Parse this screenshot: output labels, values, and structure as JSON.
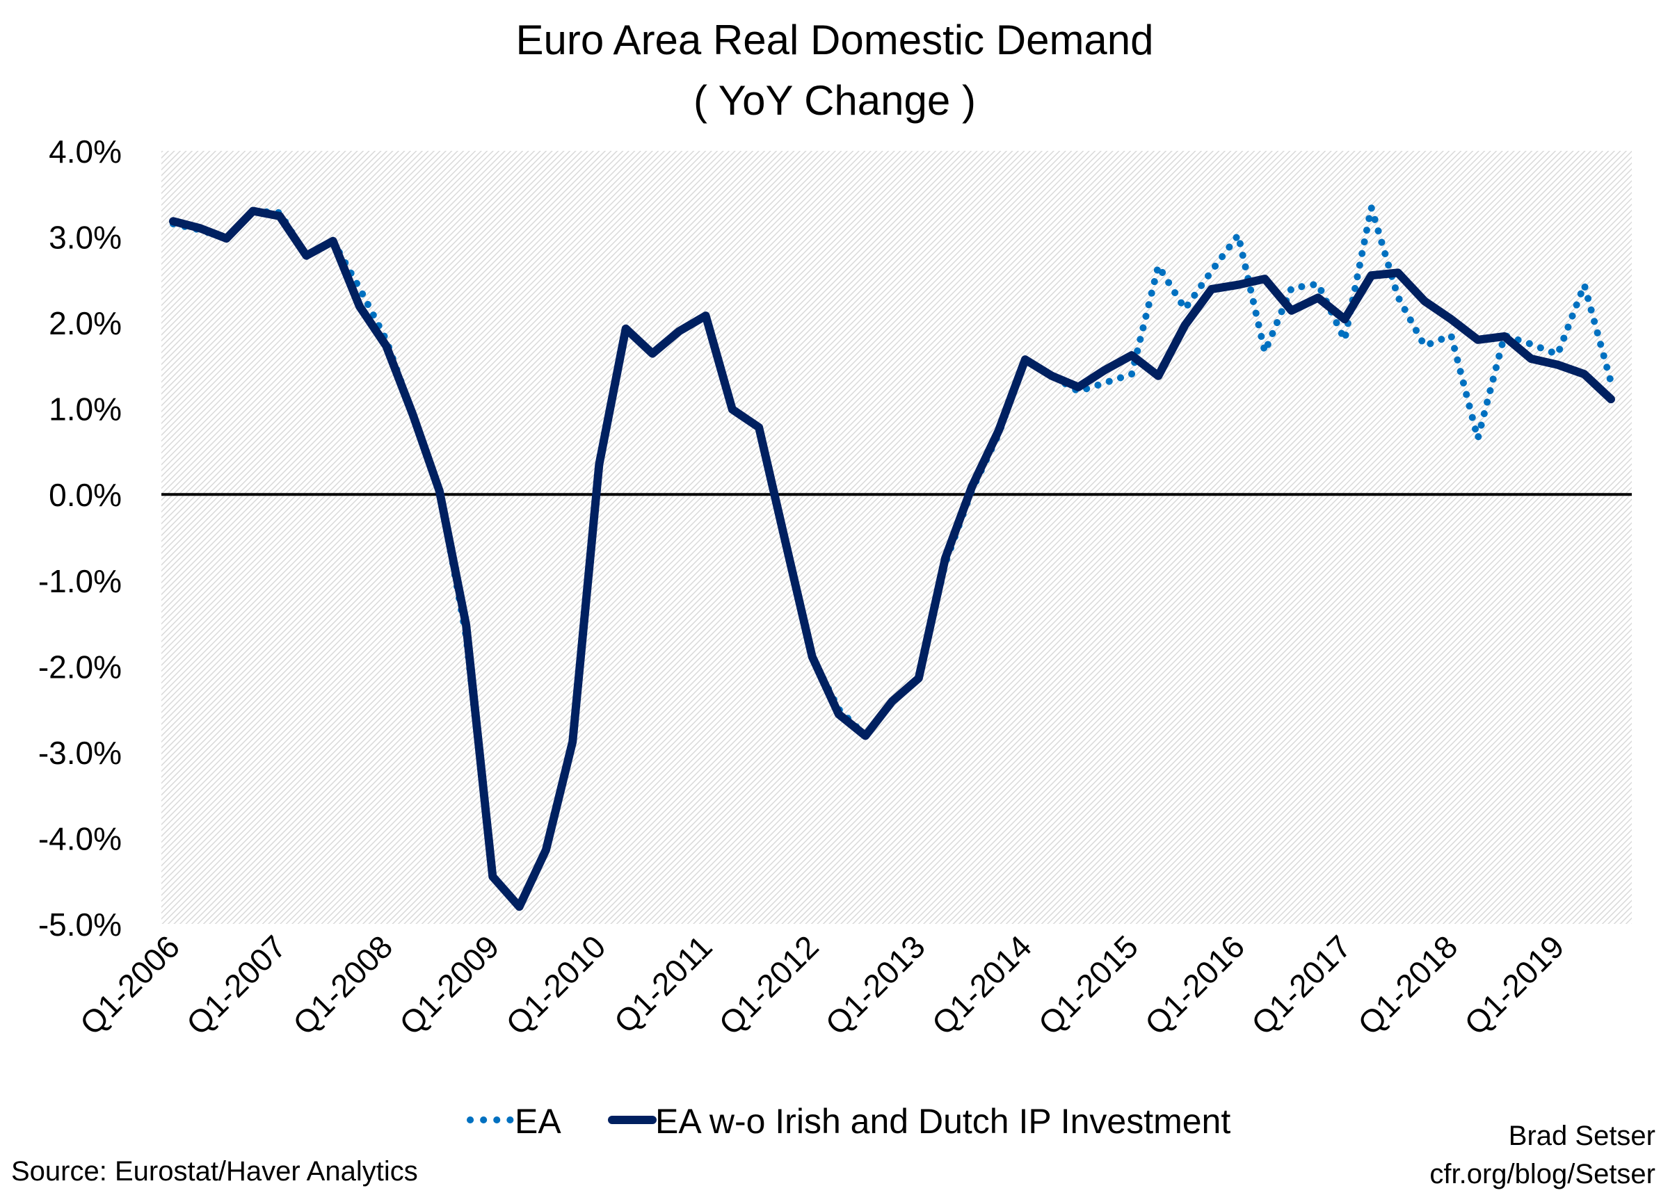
{
  "chart_data": {
    "type": "line",
    "title": "Euro Area Real Domestic Demand",
    "subtitle": "( YoY Change )",
    "xlabel": "",
    "ylabel": "",
    "ylim": [
      -5.0,
      4.0
    ],
    "y_ticks": [
      "4.0%",
      "3.0%",
      "2.0%",
      "1.0%",
      "0.0%",
      "-1.0%",
      "-2.0%",
      "-3.0%",
      "-4.0%",
      "-5.0%"
    ],
    "x_tick_labels": [
      "Q1-2006",
      "Q1-2007",
      "Q1-2008",
      "Q1-2009",
      "Q1-2010",
      "Q1-2011",
      "Q1-2012",
      "Q1-2013",
      "Q1-2014",
      "Q1-2015",
      "Q1-2016",
      "Q1-2017",
      "Q1-2018",
      "Q1-2019"
    ],
    "x_start": "Q1-2006",
    "x_end": "Q3-2019",
    "grid": false,
    "background": "hatched light gray",
    "legend_position": "bottom",
    "series": [
      {
        "name": "EA",
        "style": "dotted",
        "color": "#0070c0",
        "values": [
          3.15,
          3.08,
          2.98,
          3.3,
          3.28,
          2.78,
          2.95,
          2.4,
          1.8,
          0.93,
          0.04,
          -1.65,
          -4.45,
          -4.8,
          -4.14,
          -2.88,
          0.35,
          1.93,
          1.64,
          1.9,
          2.08,
          0.99,
          0.78,
          -0.56,
          -1.89,
          -2.5,
          -2.81,
          -2.41,
          -2.14,
          -0.8,
          0.05,
          0.7,
          1.57,
          1.38,
          1.2,
          1.3,
          1.4,
          2.66,
          2.16,
          2.6,
          3.02,
          1.66,
          2.4,
          2.45,
          1.8,
          3.34,
          2.3,
          1.73,
          1.85,
          0.65,
          1.85,
          1.75,
          1.63,
          2.44,
          1.31
        ]
      },
      {
        "name": "EA w-o Irish and Dutch IP Investment",
        "style": "solid",
        "color": "#002060",
        "values": [
          3.18,
          3.1,
          2.98,
          3.3,
          3.24,
          2.78,
          2.95,
          2.19,
          1.73,
          0.93,
          0.04,
          -1.52,
          -4.45,
          -4.8,
          -4.14,
          -2.88,
          0.35,
          1.93,
          1.64,
          1.9,
          2.08,
          0.99,
          0.78,
          -0.56,
          -1.89,
          -2.56,
          -2.81,
          -2.41,
          -2.14,
          -0.74,
          0.09,
          0.74,
          1.57,
          1.38,
          1.25,
          1.45,
          1.62,
          1.38,
          1.97,
          2.39,
          2.44,
          2.51,
          2.14,
          2.29,
          2.04,
          2.55,
          2.58,
          2.25,
          2.04,
          1.8,
          1.84,
          1.58,
          1.51,
          1.4,
          1.11
        ]
      }
    ]
  },
  "footer": {
    "source": "Source: Eurostat/Haver Analytics",
    "author": "Brad Setser",
    "site": "cfr.org/blog/Setser"
  }
}
